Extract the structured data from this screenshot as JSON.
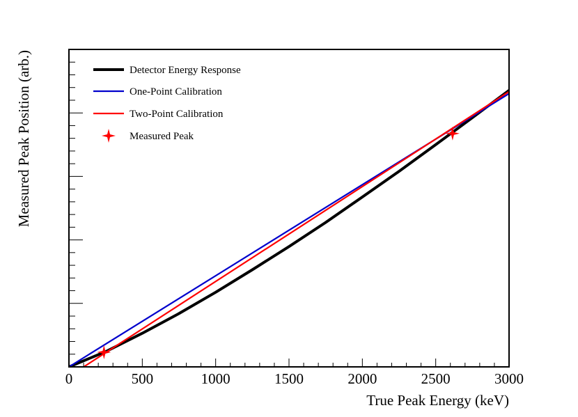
{
  "chart_data": {
    "type": "line",
    "title": "",
    "xlabel": "True Peak Energy (keV)",
    "ylabel": "Measured Peak Position (arb.)",
    "xlim": [
      0,
      3000
    ],
    "ylim": [
      0,
      1
    ],
    "x_ticks": [
      0,
      500,
      1000,
      1500,
      2000,
      2500,
      3000
    ],
    "x_tick_labels": [
      "0",
      "500",
      "1000",
      "1500",
      "2000",
      "2500",
      "3000"
    ],
    "y_tick_labels_shown": false,
    "grid": false,
    "legend_position": "top-left",
    "series": [
      {
        "name": "Detector Energy Response",
        "color": "#000000",
        "x": [
          0,
          250,
          500,
          750,
          1000,
          1250,
          1500,
          1750,
          2000,
          2250,
          2500,
          2750,
          3000
        ],
        "y": [
          0.0,
          0.048,
          0.106,
          0.168,
          0.235,
          0.306,
          0.379,
          0.455,
          0.535,
          0.616,
          0.7,
          0.785,
          0.871
        ]
      },
      {
        "name": "One-Point Calibration",
        "color": "#0000cc",
        "x": [
          0,
          3000
        ],
        "y": [
          0.0,
          0.861
        ]
      },
      {
        "name": "Two-Point Calibration",
        "color": "#ff0000",
        "x": [
          100,
          3000
        ],
        "y": [
          0.0,
          0.867
        ]
      }
    ],
    "markers": {
      "name": "Measured Peak",
      "color": "#ff0000",
      "symbol": "star",
      "points": [
        {
          "x": 239,
          "y": 0.046
        },
        {
          "x": 2615,
          "y": 0.735
        }
      ]
    }
  }
}
